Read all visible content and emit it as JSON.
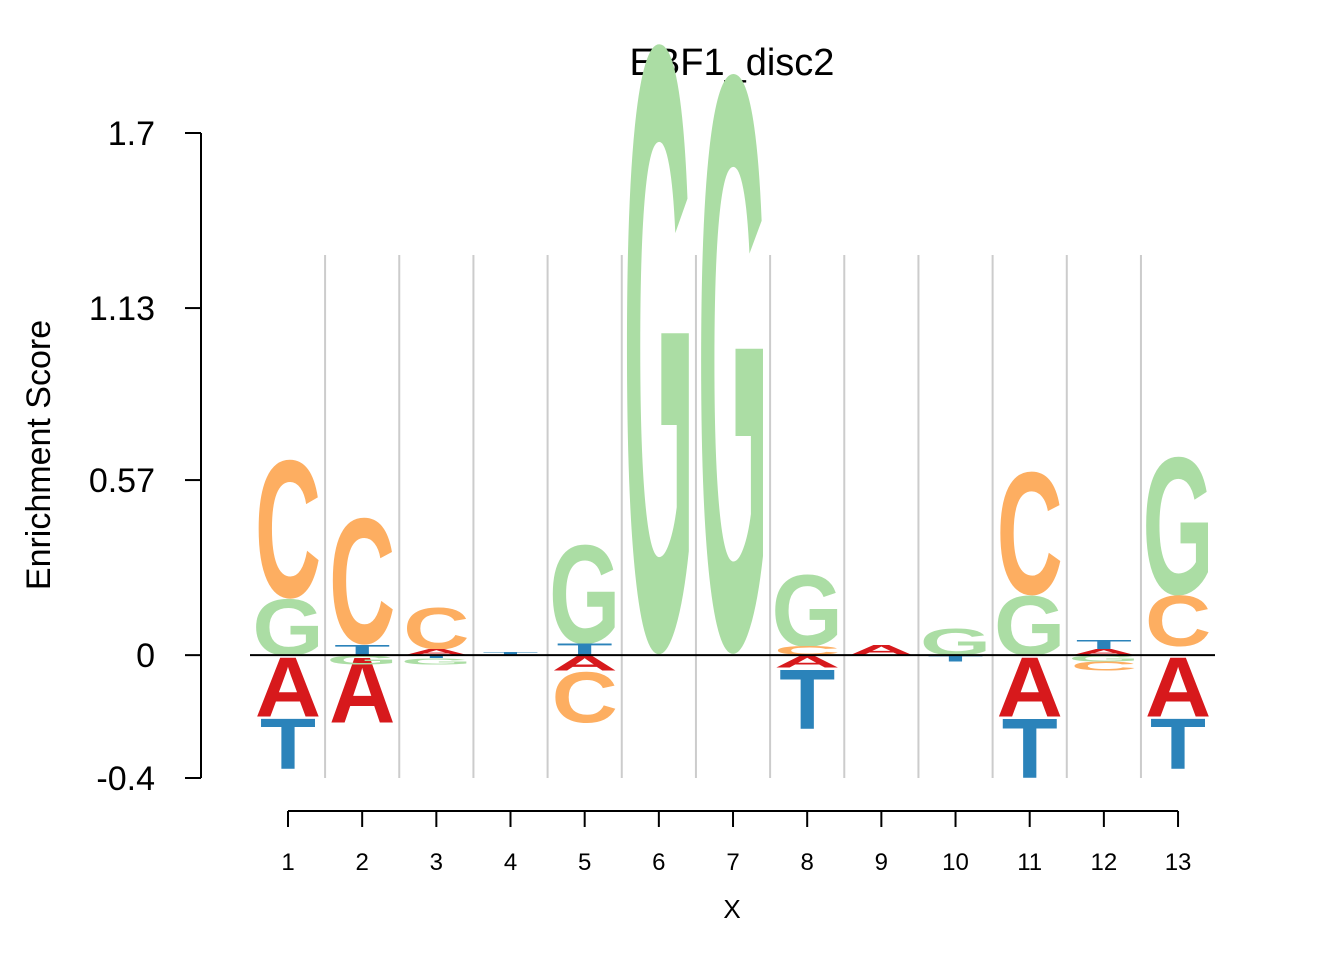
{
  "chart_data": {
    "type": "sequence_logo",
    "title": "EBF1_disc2",
    "xlabel": "X",
    "ylabel": "Enrichment Score",
    "ylim": [
      -0.4,
      1.7
    ],
    "yticks": [
      "1.7",
      "1.13",
      "0.57",
      "0",
      "-0.4"
    ],
    "ytick_values": [
      1.7,
      1.13,
      0.57,
      0,
      -0.4
    ],
    "positions": [
      "1",
      "2",
      "3",
      "4",
      "5",
      "6",
      "7",
      "8",
      "9",
      "10",
      "11",
      "12",
      "13"
    ],
    "colors": {
      "A": "#d7191c",
      "C": "#fdae61",
      "G": "#abdda4",
      "T": "#2b83ba"
    },
    "grid": true,
    "letters": [
      [
        {
          "base": "G",
          "from": 0.0,
          "to": 0.19
        },
        {
          "base": "C",
          "from": 0.19,
          "to": 0.65
        },
        {
          "base": "A",
          "from": -0.2,
          "to": 0.0
        },
        {
          "base": "T",
          "from": -0.37,
          "to": -0.2
        }
      ],
      [
        {
          "base": "A",
          "from": -0.22,
          "to": 0.0
        },
        {
          "base": "C",
          "from": 0.04,
          "to": 0.46
        },
        {
          "base": "G",
          "from": -0.03,
          "to": 0.0
        },
        {
          "base": "T",
          "from": 0.0,
          "to": 0.035
        }
      ],
      [
        {
          "base": "C",
          "from": 0.02,
          "to": 0.16
        },
        {
          "base": "A",
          "from": 0.0,
          "to": 0.02
        },
        {
          "base": "G",
          "from": -0.03,
          "to": -0.01
        },
        {
          "base": "T",
          "from": -0.01,
          "to": 0.0
        }
      ],
      [
        {
          "base": "T",
          "from": 0.0,
          "to": 0.01
        }
      ],
      [
        {
          "base": "G",
          "from": 0.04,
          "to": 0.37
        },
        {
          "base": "T",
          "from": 0.0,
          "to": 0.04
        },
        {
          "base": "A",
          "from": -0.05,
          "to": 0.0
        },
        {
          "base": "C",
          "from": -0.22,
          "to": -0.05
        }
      ],
      [
        {
          "base": "G",
          "from": 0.03,
          "to": 2.05
        }
      ],
      [
        {
          "base": "G",
          "from": 0.03,
          "to": 1.95
        }
      ],
      [
        {
          "base": "G",
          "from": 0.03,
          "to": 0.27
        },
        {
          "base": "C",
          "from": 0.0,
          "to": 0.03
        },
        {
          "base": "A",
          "from": -0.04,
          "to": 0.0
        },
        {
          "base": "T",
          "from": -0.24,
          "to": -0.04
        }
      ],
      [
        {
          "base": "A",
          "from": 0.0,
          "to": 0.035
        }
      ],
      [
        {
          "base": "G",
          "from": 0.0,
          "to": 0.09
        },
        {
          "base": "T",
          "from": -0.02,
          "to": 0.0
        }
      ],
      [
        {
          "base": "C",
          "from": 0.2,
          "to": 0.61
        },
        {
          "base": "G",
          "from": 0.0,
          "to": 0.2
        },
        {
          "base": "A",
          "from": -0.2,
          "to": 0.0
        },
        {
          "base": "T",
          "from": -0.4,
          "to": -0.2
        }
      ],
      [
        {
          "base": "T",
          "from": 0.02,
          "to": 0.05
        },
        {
          "base": "A",
          "from": 0.0,
          "to": 0.02
        },
        {
          "base": "G",
          "from": -0.02,
          "to": 0.0
        },
        {
          "base": "C",
          "from": -0.05,
          "to": -0.02
        }
      ],
      [
        {
          "base": "G",
          "from": 0.2,
          "to": 0.66
        },
        {
          "base": "C",
          "from": 0.03,
          "to": 0.2
        },
        {
          "base": "A",
          "from": -0.2,
          "to": 0.0
        },
        {
          "base": "T",
          "from": -0.37,
          "to": -0.2
        }
      ]
    ]
  }
}
